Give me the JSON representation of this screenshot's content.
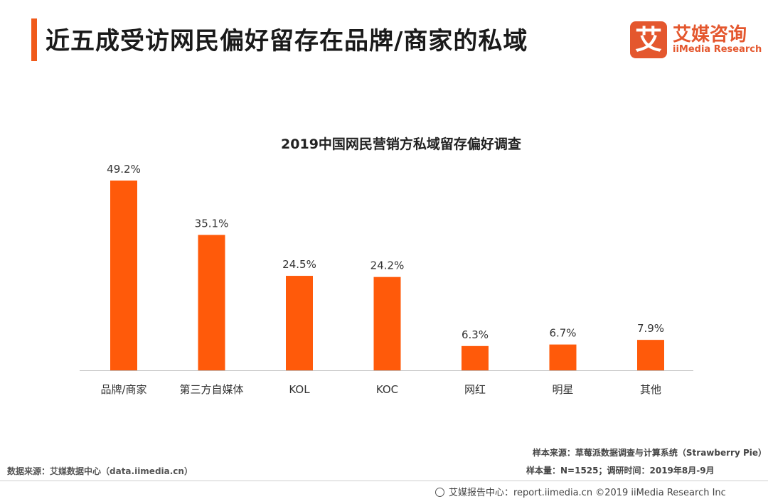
{
  "header": {
    "title": "近五成受访网民偏好留存在品牌/商家的私域"
  },
  "logo": {
    "mark": "艾",
    "cn": "艾媒咨询",
    "en": "iiMedia Research"
  },
  "colors": {
    "accent": "#f05a1a",
    "bar": "#ff5a0a",
    "axis": "#bfbfbf"
  },
  "chart_data": {
    "type": "bar",
    "title": "2019中国网民营销方私域留存偏好调查",
    "categories": [
      "品牌/商家",
      "第三方自媒体",
      "KOL",
      "KOC",
      "网红",
      "明星",
      "其他"
    ],
    "values": [
      49.2,
      35.1,
      24.5,
      24.2,
      6.3,
      6.7,
      7.9
    ],
    "value_labels": [
      "49.2%",
      "35.1%",
      "24.5%",
      "24.2%",
      "6.3%",
      "6.7%",
      "7.9%"
    ],
    "ylim": [
      0,
      49.2
    ],
    "grid": false,
    "legend": "none"
  },
  "footer": {
    "source": "数据来源：艾媒数据中心（data.iimedia.cn）",
    "sample_source": "样本来源：草莓派数据调查与计算系统（Strawberry Pie）",
    "sample_size": "样本量：N=1525；调研时间：2019年8月-9月",
    "report": "艾媒报告中心：report.iimedia.cn ©2019  iiMedia Research  Inc"
  }
}
